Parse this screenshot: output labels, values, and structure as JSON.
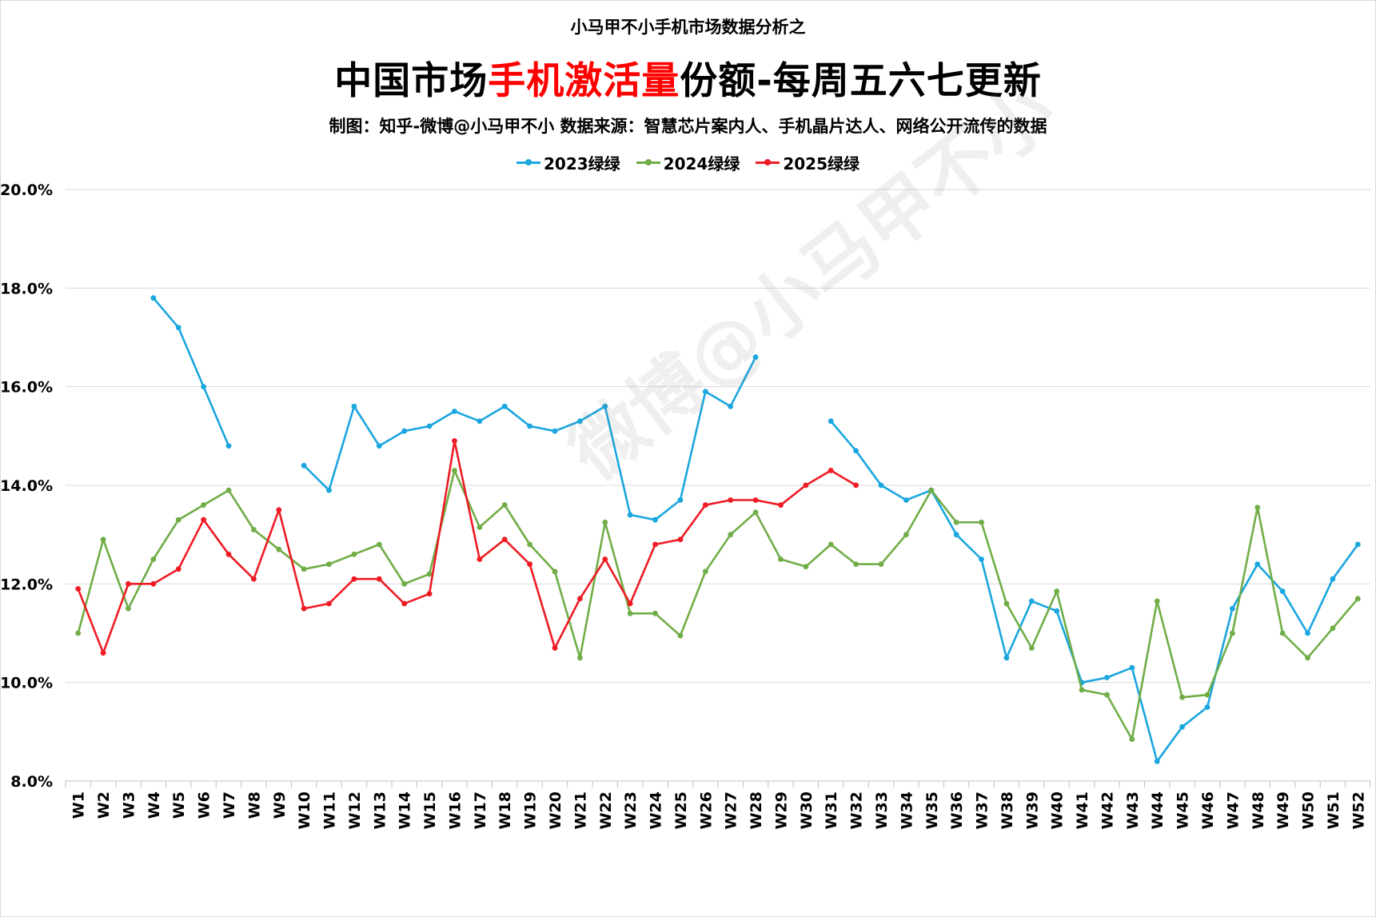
{
  "header": {
    "pretitle": "小马甲不小手机市场数据分析之",
    "title_part1": "中国市场",
    "title_highlight": "手机激活量",
    "title_part2": "份额-每周五六七更新",
    "subtitle": "制图：知乎-微博@小马甲不小  数据来源：智慧芯片案内人、手机晶片达人、网络公开流传的数据"
  },
  "watermark": "微博@小马甲不小",
  "chart_data": {
    "type": "line",
    "title": "中国市场手机激活量份额-每周五六七更新",
    "xlabel": "",
    "ylabel": "",
    "ylim": [
      8,
      20
    ],
    "yticks": [
      "8.0%",
      "10.0%",
      "12.0%",
      "14.0%",
      "16.0%",
      "18.0%",
      "20.0%"
    ],
    "yticks_values": [
      8,
      10,
      12,
      14,
      16,
      18,
      20
    ],
    "grid": true,
    "legend_position": "top-center",
    "x": [
      "W1",
      "W2",
      "W3",
      "W4",
      "W5",
      "W6",
      "W7",
      "W8",
      "W9",
      "W10",
      "W11",
      "W12",
      "W13",
      "W14",
      "W15",
      "W16",
      "W17",
      "W18",
      "W19",
      "W20",
      "W21",
      "W22",
      "W23",
      "W24",
      "W25",
      "W26",
      "W27",
      "W28",
      "W29",
      "W30",
      "W31",
      "W32",
      "W33",
      "W34",
      "W35",
      "W36",
      "W37",
      "W38",
      "W39",
      "W40",
      "W41",
      "W42",
      "W43",
      "W44",
      "W45",
      "W46",
      "W47",
      "W48",
      "W49",
      "W50",
      "W51",
      "W52"
    ],
    "series": [
      {
        "name": "2023绿绿",
        "color": "#1aa6de",
        "values": [
          null,
          null,
          null,
          17.8,
          17.2,
          16.0,
          14.8,
          null,
          null,
          14.4,
          13.9,
          15.6,
          14.8,
          15.1,
          15.2,
          15.5,
          15.3,
          15.6,
          15.2,
          15.1,
          15.3,
          15.6,
          13.4,
          13.3,
          13.7,
          15.9,
          15.6,
          16.6,
          null,
          null,
          15.3,
          14.7,
          14.0,
          13.7,
          13.9,
          13.0,
          12.5,
          10.5,
          11.65,
          11.45,
          10.0,
          10.1,
          10.3,
          8.4,
          9.1,
          9.5,
          11.5,
          12.4,
          11.85,
          11.0,
          12.1,
          12.8
        ]
      },
      {
        "name": "2024绿绿",
        "color": "#70ad47",
        "values": [
          11.0,
          12.9,
          11.5,
          12.5,
          13.3,
          13.6,
          13.9,
          13.1,
          12.7,
          12.3,
          12.4,
          12.6,
          12.8,
          12.0,
          12.2,
          14.3,
          13.15,
          13.6,
          12.8,
          12.25,
          10.5,
          13.25,
          11.4,
          11.4,
          10.95,
          12.25,
          13.0,
          13.45,
          12.5,
          12.35,
          12.8,
          12.4,
          12.4,
          13.0,
          13.9,
          13.25,
          13.25,
          11.6,
          10.7,
          11.85,
          9.85,
          9.75,
          8.85,
          11.65,
          9.7,
          9.75,
          11.0,
          13.55,
          11.0,
          10.5,
          11.1,
          11.7
        ]
      },
      {
        "name": "2025绿绿",
        "color": "#ee1b24",
        "values": [
          11.9,
          10.6,
          12.0,
          12.0,
          12.3,
          13.3,
          12.6,
          12.1,
          13.5,
          11.5,
          11.6,
          12.1,
          12.1,
          11.6,
          11.8,
          14.9,
          12.5,
          12.9,
          12.4,
          10.7,
          11.7,
          12.5,
          11.6,
          12.8,
          12.9,
          13.6,
          13.7,
          13.7,
          13.6,
          14.0,
          14.3,
          14.0,
          null,
          null,
          null,
          null,
          null,
          null,
          null,
          null,
          null,
          null,
          null,
          null,
          null,
          null,
          null,
          null,
          null,
          null,
          null,
          null
        ]
      }
    ]
  }
}
